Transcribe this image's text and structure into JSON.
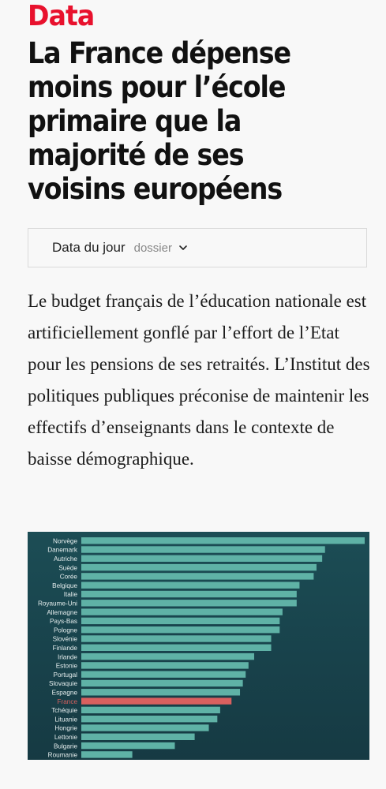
{
  "section": {
    "label": "Data"
  },
  "article": {
    "title": "La France dépense moins pour l’école primaire que la majorité de ses voisins européens",
    "lead": "Le budget français de l’éducation nationale est artificiellement gonflé par l’effort de l’Etat pour les pensions de ses retraités. L’Institut des politiques publiques préconise de maintenir les effectifs d’enseignants dans le contexte de baisse démographique."
  },
  "tag": {
    "name": "Data du jour",
    "type": "dossier",
    "icon": "chevron-down-icon"
  },
  "colors": {
    "accent": "#e8112d",
    "bar": "#5fb2a6",
    "highlight": "#d9605f"
  },
  "chart_data": {
    "type": "bar",
    "orientation": "horizontal",
    "categories": [
      "Norvège",
      "Danemark",
      "Autriche",
      "Suède",
      "Corée",
      "Belgique",
      "Italie",
      "Royaume-Uni",
      "Allemagne",
      "Pays-Bas",
      "Pologne",
      "Slovénie",
      "Finlande",
      "Irlande",
      "Estonie",
      "Portugal",
      "Slovaquie",
      "Espagne",
      "France",
      "Tchéquie",
      "Lituanie",
      "Hongrie",
      "Lettonie",
      "Bulgarie",
      "Roumanie"
    ],
    "values": [
      100,
      86,
      85,
      83,
      82,
      77,
      76,
      76,
      71,
      70,
      70,
      67,
      67,
      61,
      59,
      58,
      57,
      56,
      53,
      49,
      48,
      45,
      40,
      33,
      18
    ],
    "highlight": "France",
    "grid": false
  }
}
